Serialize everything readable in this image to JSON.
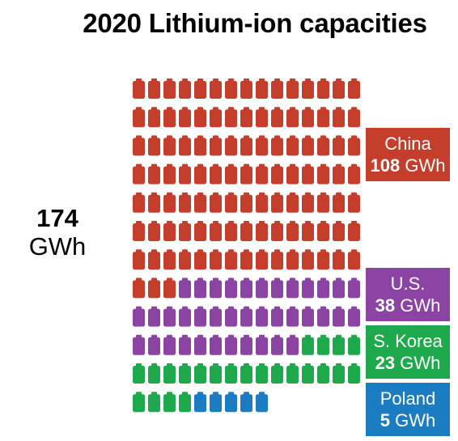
{
  "chart_data": {
    "type": "waffle",
    "title": "2020 Lithium-ion capacities",
    "total": {
      "value": "174",
      "unit": "GWh"
    },
    "unit": "GWh",
    "columns": 15,
    "series": [
      {
        "name": "China",
        "value": 108,
        "color": "#c53d2b"
      },
      {
        "name": "U.S.",
        "value": 38,
        "color": "#8b44a4"
      },
      {
        "name": "S. Korea",
        "value": 23,
        "color": "#1da94c"
      },
      {
        "name": "Poland",
        "value": 5,
        "color": "#1c7cc1"
      }
    ],
    "icon": "battery-icon"
  }
}
